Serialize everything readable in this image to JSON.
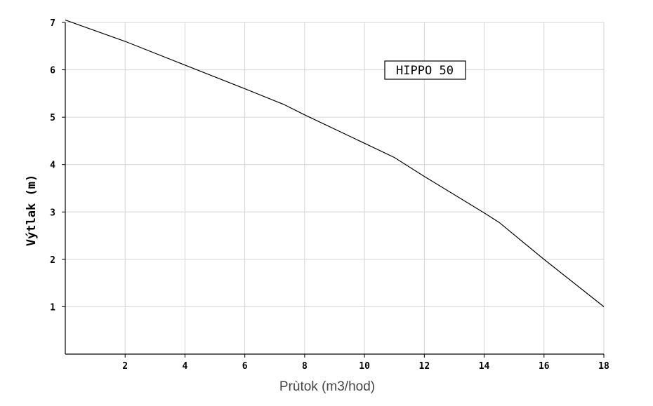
{
  "chart_data": {
    "type": "line",
    "xlabel": "Prùtok (m3/hod)",
    "ylabel": "Výtlak (m)",
    "xlim": [
      0,
      18
    ],
    "ylim": [
      0,
      7
    ],
    "xticks": [
      2,
      4,
      6,
      8,
      10,
      12,
      14,
      16,
      18
    ],
    "yticks": [
      1,
      2,
      3,
      4,
      5,
      6,
      7
    ],
    "grid": true,
    "legend": "top-right",
    "series": [
      {
        "name": "HIPPO 50",
        "color": "#000000",
        "x": [
          0,
          2,
          4,
          6,
          7.3,
          8,
          10,
          11,
          12,
          14,
          14.5,
          16,
          18
        ],
        "y": [
          7.05,
          6.6,
          6.1,
          5.6,
          5.27,
          5.05,
          4.45,
          4.15,
          3.75,
          2.98,
          2.78,
          2.0,
          1.0
        ]
      }
    ]
  }
}
